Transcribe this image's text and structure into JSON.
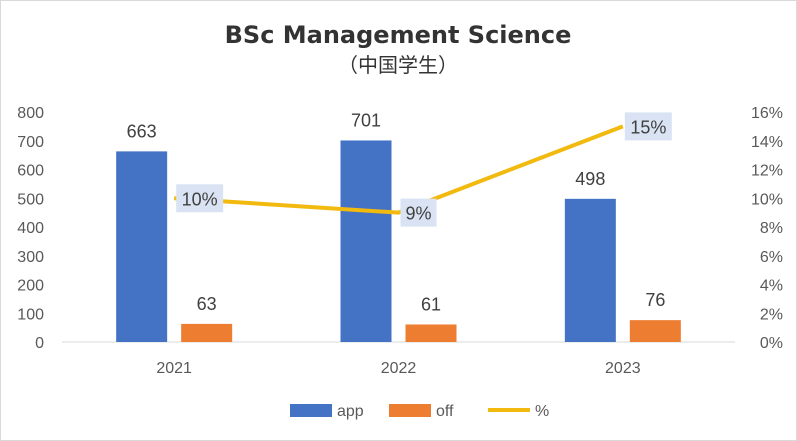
{
  "chart_data": {
    "type": "bar",
    "title": "BSc Management Science",
    "subtitle": "（中国学生）",
    "categories": [
      "2021",
      "2022",
      "2023"
    ],
    "series": [
      {
        "name": "app",
        "type": "bar",
        "axis": "left",
        "values": [
          663,
          701,
          498
        ],
        "labels": [
          "663",
          "701",
          "498"
        ]
      },
      {
        "name": "off",
        "type": "bar",
        "axis": "left",
        "values": [
          63,
          61,
          76
        ],
        "labels": [
          "63",
          "61",
          "76"
        ]
      },
      {
        "name": "%",
        "type": "line",
        "axis": "right",
        "values": [
          10,
          9,
          15
        ],
        "labels": [
          "10%",
          "9%",
          "15%"
        ]
      }
    ],
    "y_left": {
      "min": 0,
      "max": 800,
      "ticks": [
        "0",
        "100",
        "200",
        "300",
        "400",
        "500",
        "600",
        "700",
        "800"
      ]
    },
    "y_right": {
      "min": 0,
      "max": 16,
      "ticks": [
        "0%",
        "2%",
        "4%",
        "6%",
        "8%",
        "10%",
        "12%",
        "14%",
        "16%"
      ]
    },
    "grid": false,
    "legend_position": "bottom",
    "colors": {
      "app": "#4472c4",
      "off": "#ed7d31",
      "%": "#f2b90f",
      "label_box": "#dae3f3"
    }
  }
}
